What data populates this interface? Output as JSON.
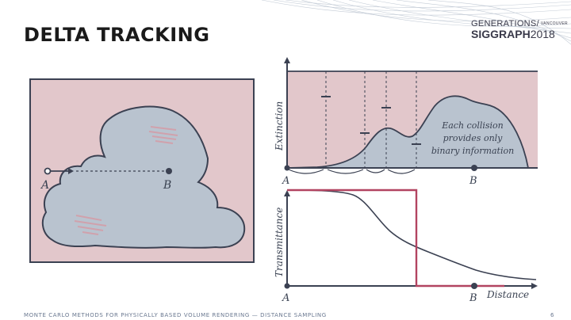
{
  "title": "DELTA TRACKING",
  "conference": {
    "line1": "GENERATIONS",
    "separator": "/",
    "city": "VANCOUVER",
    "line2_bold": "SIGGRAPH",
    "line2_year": "2018"
  },
  "footer": {
    "text": "MONTE CARLO METHODS FOR PHYSICALLY BASED VOLUME RENDERING — DISTANCE SAMPLING",
    "page": "6"
  },
  "colors": {
    "medium_bg": "#e2c7cb",
    "cloud_fill": "#b9c3cf",
    "ink": "#3b4152",
    "accent": "#b24461",
    "streak": "#d59ca6"
  },
  "left_figure": {
    "label_a": "A",
    "label_b": "B"
  },
  "top_plot": {
    "ylabel": "Extinction",
    "label_a": "A",
    "label_b": "B",
    "annotation": [
      "Each collision",
      "provides only",
      "binary information"
    ]
  },
  "bottom_plot": {
    "ylabel": "Transmittance",
    "label_a": "A",
    "label_b": "B",
    "xlabel": "Distance"
  }
}
